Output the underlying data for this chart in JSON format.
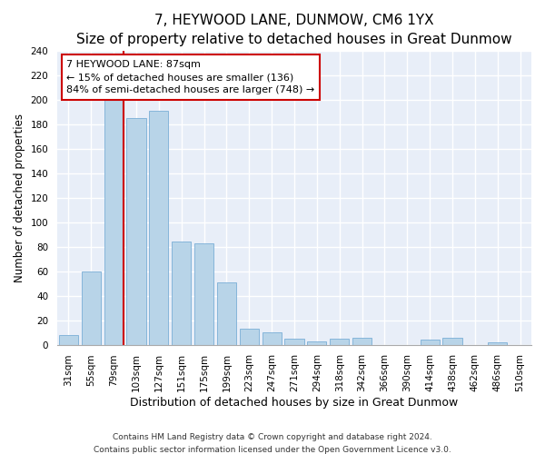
{
  "title": "7, HEYWOOD LANE, DUNMOW, CM6 1YX",
  "subtitle": "Size of property relative to detached houses in Great Dunmow",
  "xlabel": "Distribution of detached houses by size in Great Dunmow",
  "ylabel": "Number of detached properties",
  "bar_labels": [
    "31sqm",
    "55sqm",
    "79sqm",
    "103sqm",
    "127sqm",
    "151sqm",
    "175sqm",
    "199sqm",
    "223sqm",
    "247sqm",
    "271sqm",
    "294sqm",
    "318sqm",
    "342sqm",
    "366sqm",
    "390sqm",
    "414sqm",
    "438sqm",
    "462sqm",
    "486sqm",
    "510sqm"
  ],
  "bar_heights": [
    8,
    60,
    201,
    185,
    191,
    84,
    83,
    51,
    13,
    10,
    5,
    3,
    5,
    6,
    0,
    0,
    4,
    6,
    0,
    2,
    0
  ],
  "bar_color": "#b8d4e8",
  "bar_edge_color": "#7aaed6",
  "vline_x_index": 2,
  "vline_color": "#cc0000",
  "annotation_title": "7 HEYWOOD LANE: 87sqm",
  "annotation_line1": "← 15% of detached houses are smaller (136)",
  "annotation_line2": "84% of semi-detached houses are larger (748) →",
  "annotation_box_facecolor": "#ffffff",
  "annotation_box_edgecolor": "#cc0000",
  "ylim": [
    0,
    240
  ],
  "yticks": [
    0,
    20,
    40,
    60,
    80,
    100,
    120,
    140,
    160,
    180,
    200,
    220,
    240
  ],
  "footer1": "Contains HM Land Registry data © Crown copyright and database right 2024.",
  "footer2": "Contains public sector information licensed under the Open Government Licence v3.0.",
  "fig_bg_color": "#ffffff",
  "plot_bg_color": "#e8eef8",
  "grid_color": "#ffffff",
  "title_fontsize": 11,
  "subtitle_fontsize": 9.5,
  "xlabel_fontsize": 9,
  "ylabel_fontsize": 8.5,
  "tick_fontsize": 7.5,
  "annotation_fontsize": 8,
  "footer_fontsize": 6.5
}
